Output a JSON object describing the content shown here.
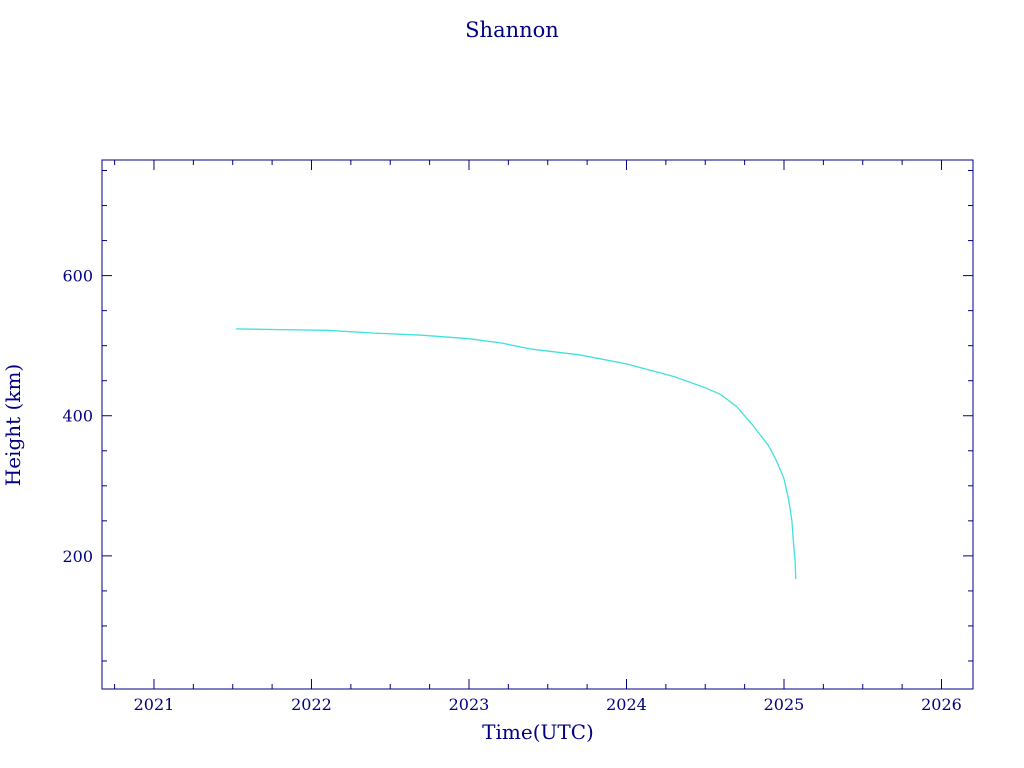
{
  "chart_data": {
    "type": "line",
    "title": "Shannon",
    "xlabel": "Time(UTC)",
    "ylabel": "Height (km)",
    "xlim": [
      2020.67,
      2026.2
    ],
    "ylim": [
      10,
      765
    ],
    "xticks": [
      2021,
      2022,
      2023,
      2024,
      2025,
      2026
    ],
    "xtick_labels": [
      "2021",
      "2022",
      "2023",
      "2024",
      "2025",
      "2026"
    ],
    "yticks": [
      200,
      400,
      600
    ],
    "ytick_labels": [
      "200",
      "400",
      "600"
    ],
    "grid": false,
    "series": [
      {
        "color": "#40e0e0",
        "x": [
          2021.52,
          2021.8,
          2022.1,
          2022.4,
          2022.7,
          2023.0,
          2023.2,
          2023.4,
          2023.7,
          2024.0,
          2024.3,
          2024.5,
          2024.6,
          2024.7,
          2024.8,
          2024.9,
          2024.95,
          2025.0,
          2025.03,
          2025.05,
          2025.06,
          2025.07,
          2025.075
        ],
        "y": [
          524,
          523,
          522,
          518,
          515,
          510,
          504,
          495,
          487,
          474,
          456,
          440,
          430,
          413,
          387,
          358,
          337,
          310,
          280,
          250,
          220,
          195,
          167
        ]
      }
    ]
  },
  "colors": {
    "frame": "#000080",
    "line": "#40e0e0",
    "background": "#ffffff"
  }
}
